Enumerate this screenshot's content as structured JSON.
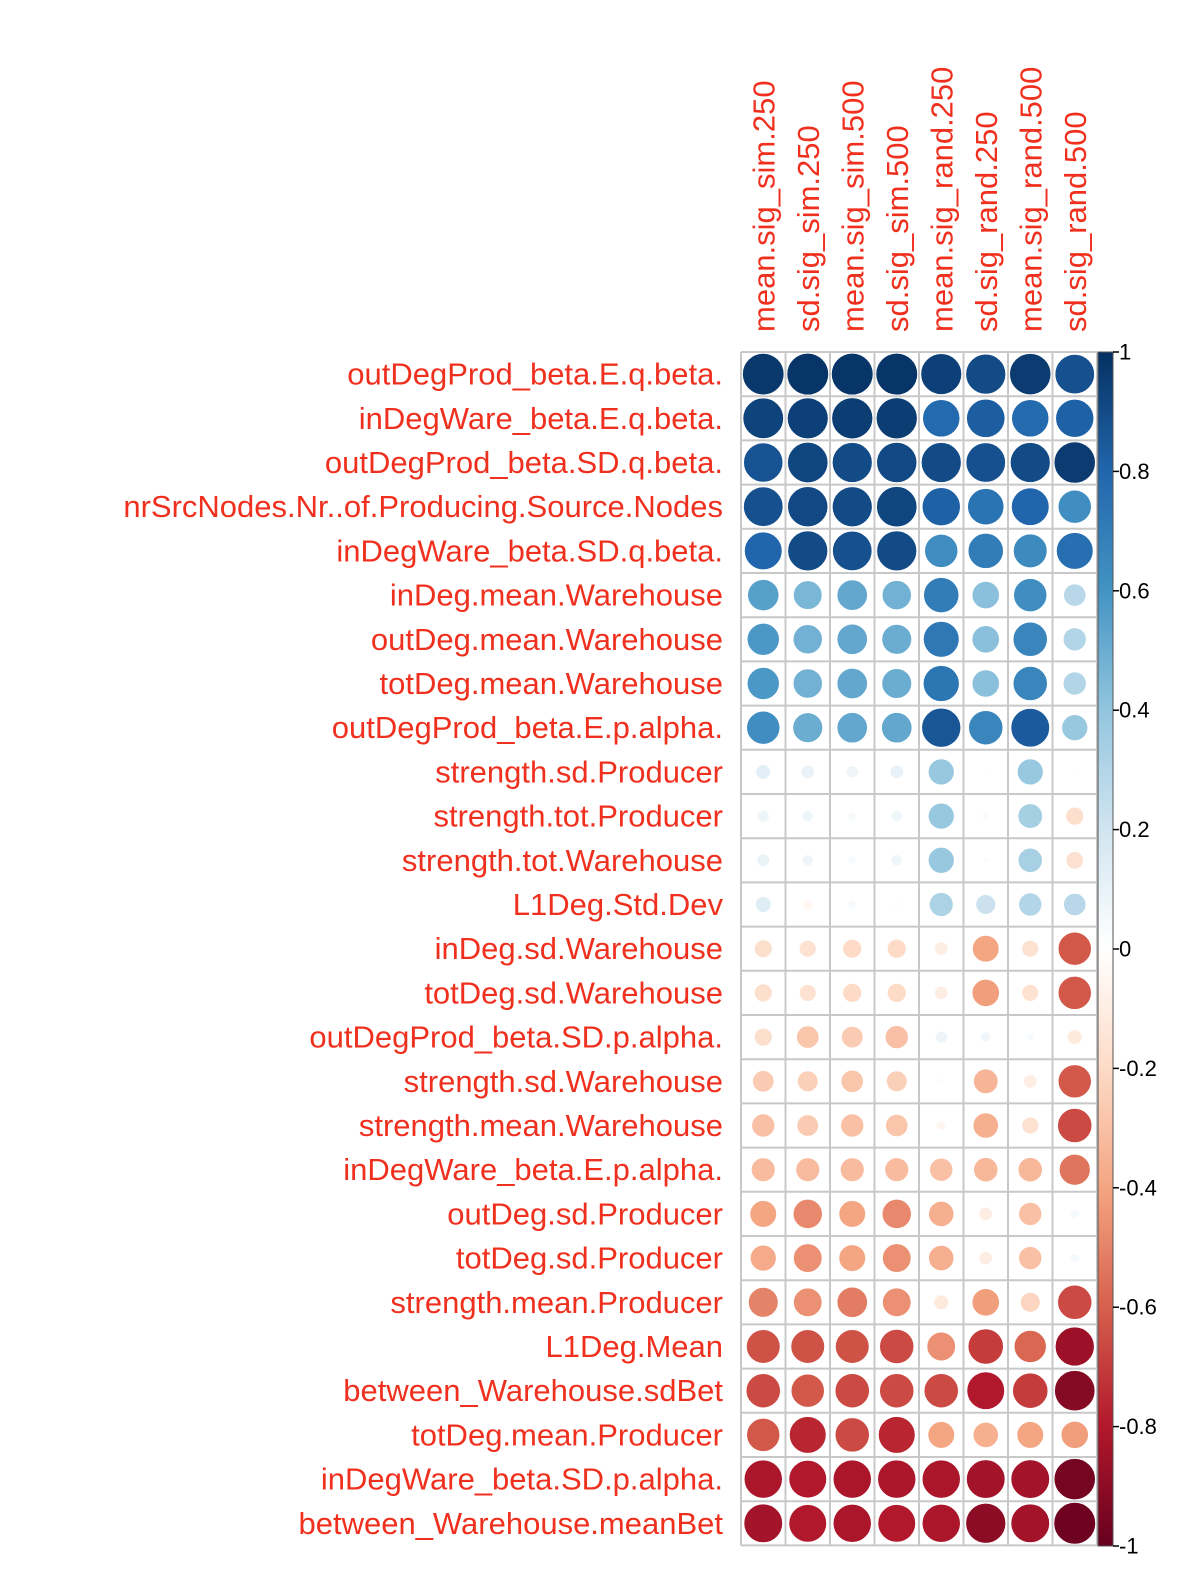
{
  "chart_data": {
    "type": "heatmap",
    "columns": [
      "mean.sig_sim.250",
      "sd.sig_sim.250",
      "mean.sig_sim.500",
      "sd.sig_sim.500",
      "mean.sig_rand.250",
      "sd.sig_rand.250",
      "mean.sig_rand.500",
      "sd.sig_rand.500"
    ],
    "rows": [
      {
        "label": "outDegProd_beta.E.q.beta.",
        "values": [
          0.97,
          0.98,
          0.98,
          0.98,
          0.94,
          0.9,
          0.96,
          0.88
        ]
      },
      {
        "label": "inDegWare_beta.E.q.beta.",
        "values": [
          0.93,
          0.94,
          0.95,
          0.95,
          0.78,
          0.83,
          0.78,
          0.82
        ]
      },
      {
        "label": "outDegProd_beta.SD.q.beta.",
        "values": [
          0.87,
          0.92,
          0.9,
          0.91,
          0.9,
          0.88,
          0.9,
          0.96
        ]
      },
      {
        "label": "nrSrcNodes.Nr..of.Producing.Source.Nodes",
        "values": [
          0.88,
          0.91,
          0.9,
          0.92,
          0.82,
          0.74,
          0.8,
          0.62
        ]
      },
      {
        "label": "inDegWare_beta.SD.q.beta.",
        "values": [
          0.8,
          0.9,
          0.88,
          0.9,
          0.62,
          0.7,
          0.64,
          0.76
        ]
      },
      {
        "label": "inDeg.mean.Warehouse",
        "values": [
          0.55,
          0.46,
          0.52,
          0.48,
          0.7,
          0.42,
          0.62,
          0.28
        ]
      },
      {
        "label": "outDeg.mean.Warehouse",
        "values": [
          0.58,
          0.48,
          0.52,
          0.5,
          0.72,
          0.42,
          0.66,
          0.3
        ]
      },
      {
        "label": "totDeg.mean.Warehouse",
        "values": [
          0.58,
          0.48,
          0.52,
          0.5,
          0.73,
          0.42,
          0.66,
          0.3
        ]
      },
      {
        "label": "outDegProd_beta.E.p.alpha.",
        "values": [
          0.62,
          0.5,
          0.52,
          0.52,
          0.86,
          0.66,
          0.84,
          0.38
        ]
      },
      {
        "label": "strength.sd.Producer",
        "values": [
          0.12,
          0.1,
          0.08,
          0.1,
          0.38,
          0.01,
          0.38,
          0.01
        ]
      },
      {
        "label": "strength.tot.Producer",
        "values": [
          0.08,
          0.07,
          0.04,
          0.07,
          0.38,
          0.03,
          0.34,
          -0.18
        ]
      },
      {
        "label": "strength.tot.Warehouse",
        "values": [
          0.09,
          0.07,
          0.04,
          0.07,
          0.38,
          0.02,
          0.33,
          -0.17
        ]
      },
      {
        "label": "L1Deg.Std.Dev",
        "values": [
          0.14,
          -0.05,
          0.04,
          0.02,
          0.32,
          0.22,
          0.3,
          0.28
        ]
      },
      {
        "label": "inDeg.sd.Warehouse",
        "values": [
          -0.18,
          -0.16,
          -0.2,
          -0.2,
          -0.1,
          -0.4,
          -0.16,
          -0.62
        ]
      },
      {
        "label": "totDeg.sd.Warehouse",
        "values": [
          -0.18,
          -0.16,
          -0.2,
          -0.2,
          -0.1,
          -0.42,
          -0.16,
          -0.62
        ]
      },
      {
        "label": "outDegProd_beta.SD.p.alpha.",
        "values": [
          -0.18,
          -0.28,
          -0.26,
          -0.3,
          0.08,
          0.06,
          0.03,
          -0.12
        ]
      },
      {
        "label": "strength.sd.Warehouse",
        "values": [
          -0.26,
          -0.24,
          -0.28,
          -0.24,
          -0.02,
          -0.34,
          -0.1,
          -0.62
        ]
      },
      {
        "label": "strength.mean.Warehouse",
        "values": [
          -0.3,
          -0.26,
          -0.3,
          -0.28,
          -0.05,
          -0.36,
          -0.16,
          -0.66
        ]
      },
      {
        "label": "inDegWare_beta.E.p.alpha.",
        "values": [
          -0.32,
          -0.32,
          -0.32,
          -0.32,
          -0.3,
          -0.33,
          -0.33,
          -0.54
        ]
      },
      {
        "label": "outDeg.sd.Producer",
        "values": [
          -0.4,
          -0.48,
          -0.4,
          -0.48,
          -0.36,
          -0.1,
          -0.3,
          0.05
        ]
      },
      {
        "label": "totDeg.sd.Producer",
        "values": [
          -0.38,
          -0.46,
          -0.4,
          -0.46,
          -0.36,
          -0.1,
          -0.3,
          0.05
        ]
      },
      {
        "label": "strength.mean.Producer",
        "values": [
          -0.5,
          -0.46,
          -0.52,
          -0.46,
          -0.12,
          -0.42,
          -0.22,
          -0.66
        ]
      },
      {
        "label": "L1Deg.Mean",
        "values": [
          -0.64,
          -0.64,
          -0.64,
          -0.66,
          -0.46,
          -0.7,
          -0.58,
          -0.86
        ]
      },
      {
        "label": "between_Warehouse.sdBet",
        "values": [
          -0.66,
          -0.62,
          -0.66,
          -0.66,
          -0.66,
          -0.8,
          -0.7,
          -0.92
        ]
      },
      {
        "label": "totDeg.mean.Producer",
        "values": [
          -0.62,
          -0.76,
          -0.66,
          -0.76,
          -0.4,
          -0.36,
          -0.4,
          -0.42
        ]
      },
      {
        "label": "inDegWare_beta.SD.p.alpha.",
        "values": [
          -0.82,
          -0.8,
          -0.82,
          -0.82,
          -0.82,
          -0.84,
          -0.84,
          -0.96
        ]
      },
      {
        "label": "between_Warehouse.meanBet",
        "values": [
          -0.84,
          -0.8,
          -0.82,
          -0.8,
          -0.82,
          -0.9,
          -0.84,
          -0.98
        ]
      }
    ],
    "colorbar": {
      "range": [
        -1,
        1
      ],
      "tick_labels": [
        "1",
        "0.8",
        "0.6",
        "0.4",
        "0.2",
        "0",
        "-0.2",
        "-0.4",
        "-0.6",
        "-0.8",
        "-1"
      ],
      "tick_values": [
        1,
        0.8,
        0.6,
        0.4,
        0.2,
        0,
        -0.2,
        -0.4,
        -0.6,
        -0.8,
        -1
      ]
    },
    "colors": {
      "label": "#f0301e",
      "grid": "#c8c8c8",
      "negative_end": "#67001f",
      "neutral": "#ffffff",
      "positive_end": "#053061"
    },
    "grid": true
  }
}
